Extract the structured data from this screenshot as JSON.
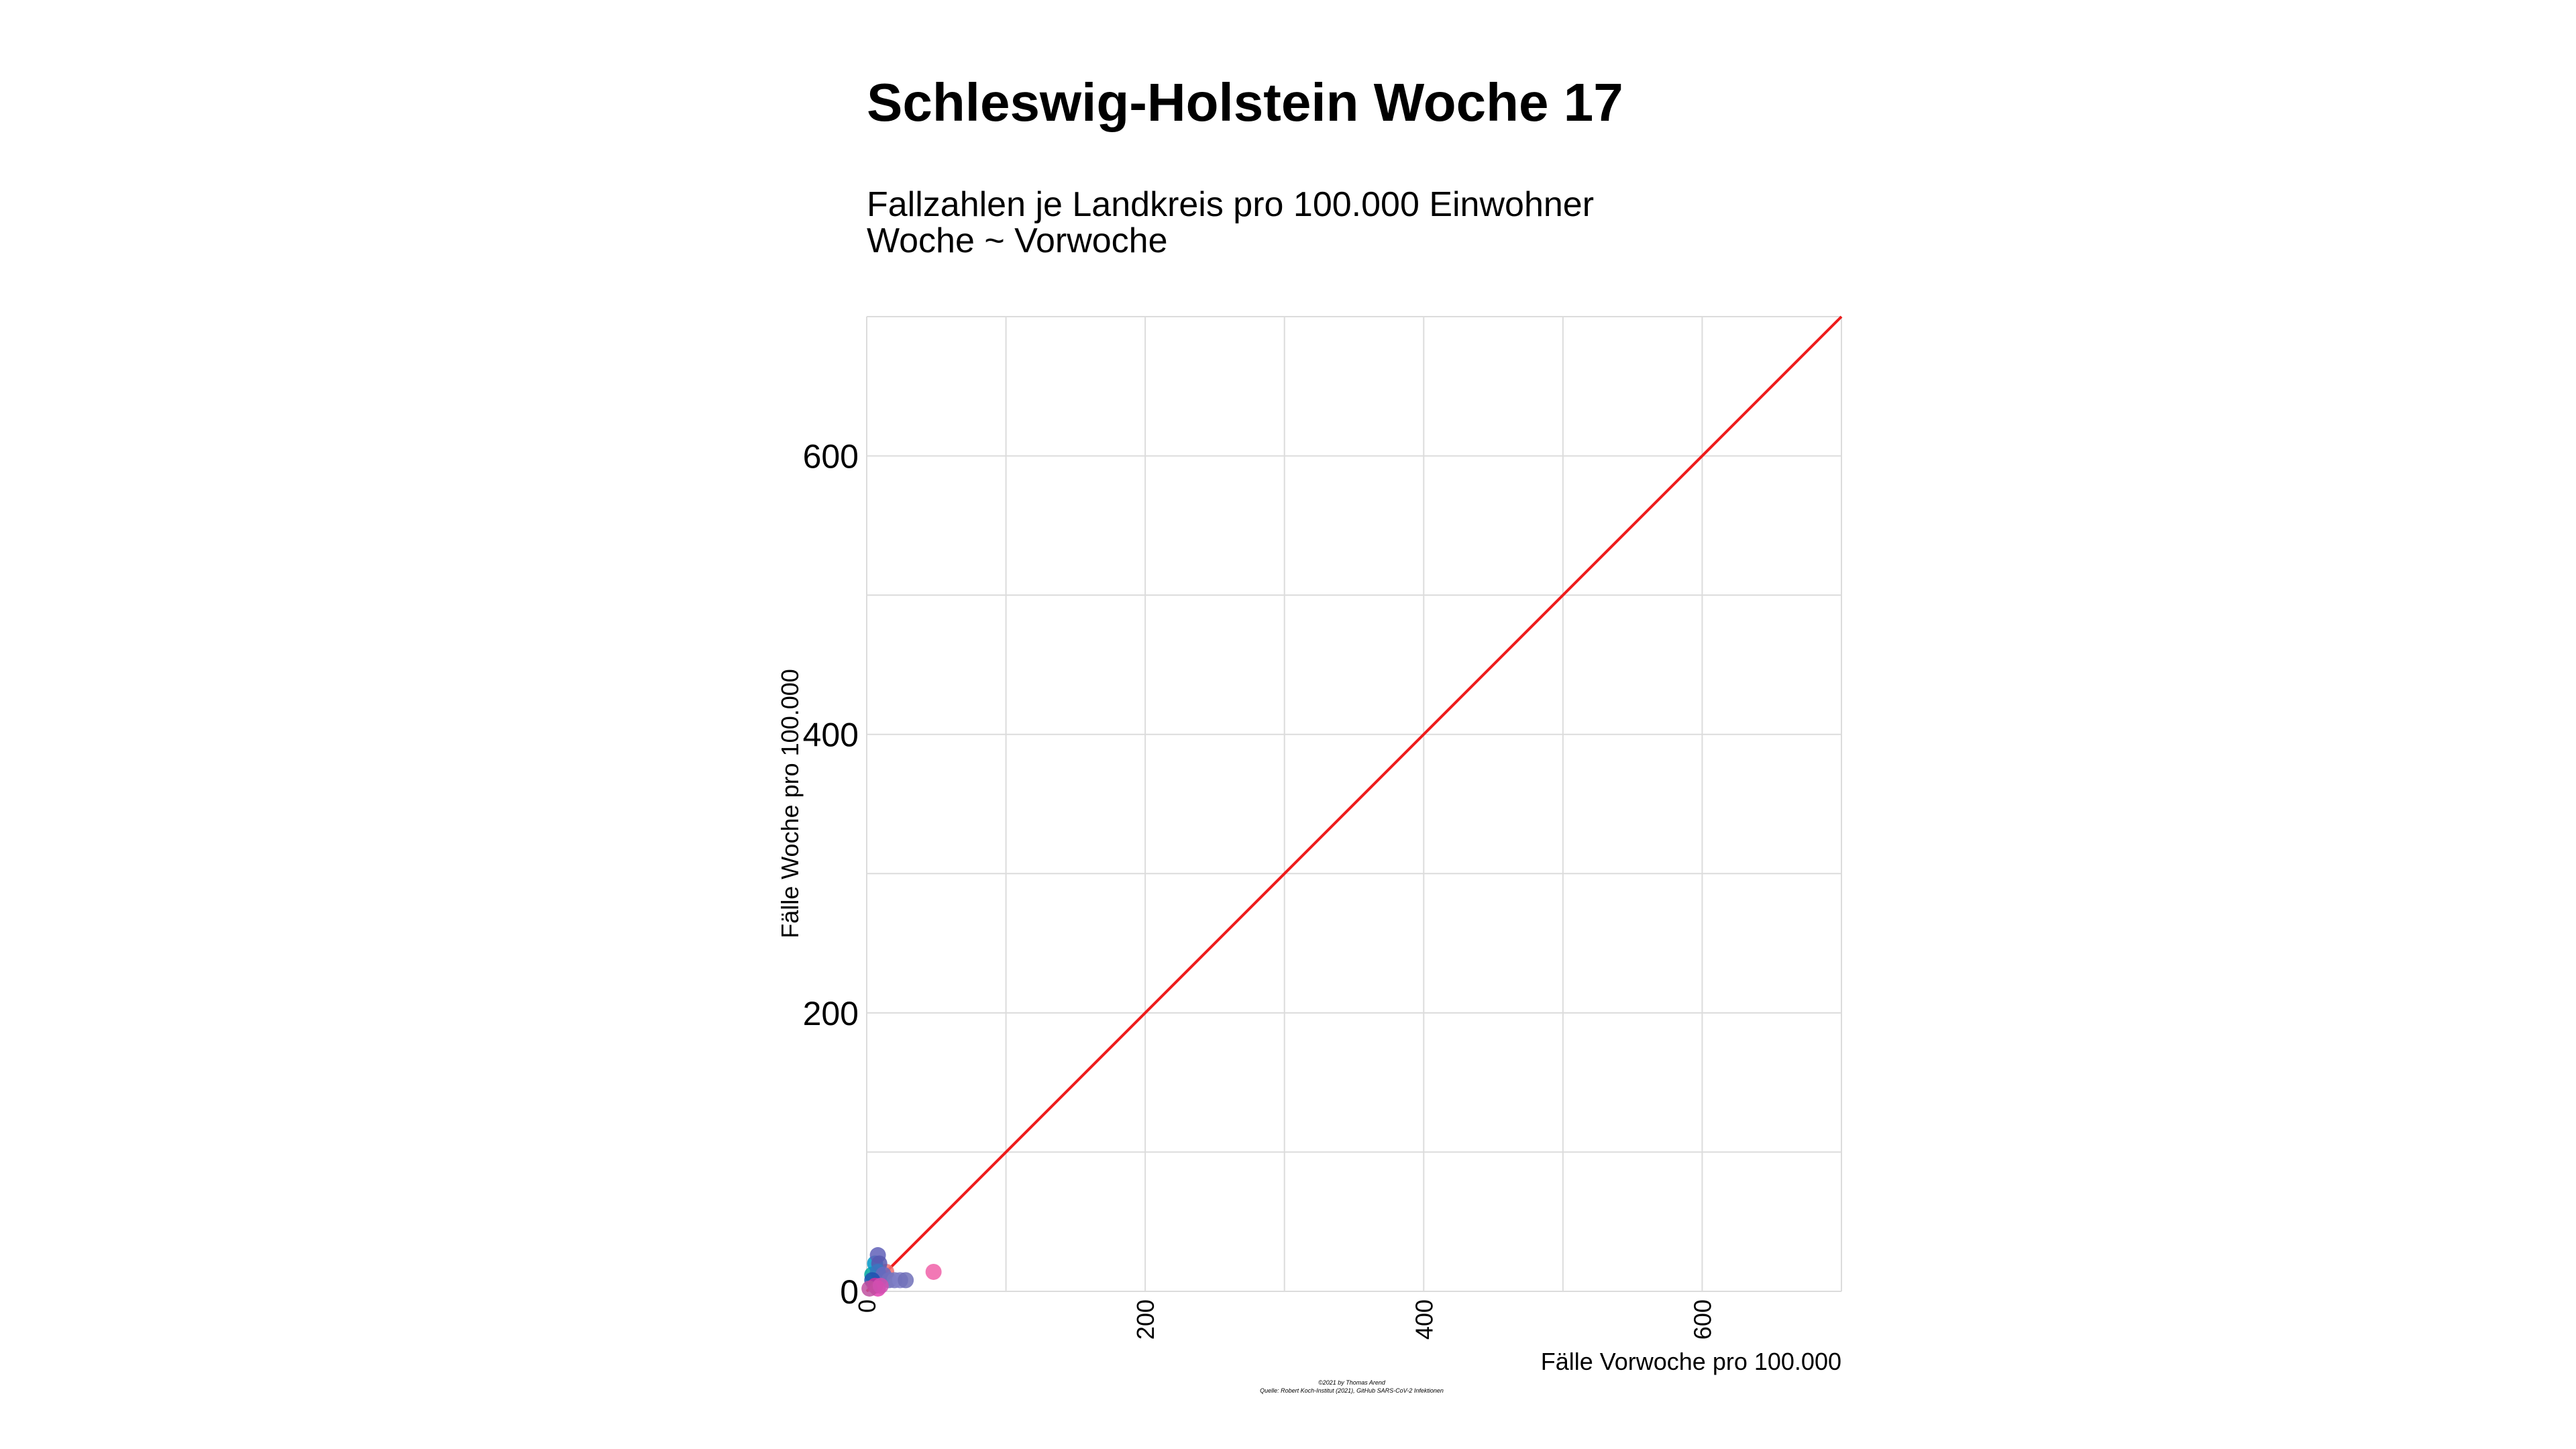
{
  "chart_data": {
    "type": "scatter",
    "title": "Schleswig-Holstein Woche 17",
    "subtitle": [
      "Fallzahlen je Landkreis pro 100.000 Einwohner",
      "Woche ~ Vorwoche"
    ],
    "xlabel": "Fälle Vorwoche pro 100.000",
    "ylabel": "Fälle Woche pro 100.000",
    "xlim": [
      0,
      700
    ],
    "ylim": [
      0,
      700
    ],
    "x_ticks": [
      0,
      200,
      400,
      600
    ],
    "y_ticks": [
      0,
      200,
      400,
      600
    ],
    "grid": true,
    "reference_line": {
      "type": "identity",
      "color": "#ee1c1c"
    },
    "caption": [
      "©2021 by Thomas Arend",
      "Quelle: Robert Koch-Institut (2021), GitHub SARS-CoV-2 Infektionen"
    ],
    "points": [
      {
        "x": 48,
        "y": 14,
        "color": "#f060a8"
      },
      {
        "x": 14,
        "y": 14,
        "color": "#f07070"
      },
      {
        "x": 10,
        "y": 10,
        "color": "#e05060"
      },
      {
        "x": 4,
        "y": 12,
        "color": "#00a8a0"
      },
      {
        "x": 6,
        "y": 20,
        "color": "#0098c8"
      },
      {
        "x": 8,
        "y": 26,
        "color": "#6060b8"
      },
      {
        "x": 9,
        "y": 20,
        "color": "#5858b0"
      },
      {
        "x": 8,
        "y": 14,
        "color": "#3878c0"
      },
      {
        "x": 12,
        "y": 12,
        "color": "#6868c0"
      },
      {
        "x": 16,
        "y": 8,
        "color": "#7070c0"
      },
      {
        "x": 20,
        "y": 8,
        "color": "#7878c0"
      },
      {
        "x": 24,
        "y": 8,
        "color": "#8080c8"
      },
      {
        "x": 28,
        "y": 8,
        "color": "#7070b8"
      },
      {
        "x": 4,
        "y": 8,
        "color": "#2050b0"
      },
      {
        "x": 6,
        "y": 4,
        "color": "#d030a0"
      },
      {
        "x": 8,
        "y": 2,
        "color": "#e040b0"
      },
      {
        "x": 2,
        "y": 2,
        "color": "#c050a0"
      },
      {
        "x": 10,
        "y": 4,
        "color": "#d050b0"
      }
    ]
  }
}
